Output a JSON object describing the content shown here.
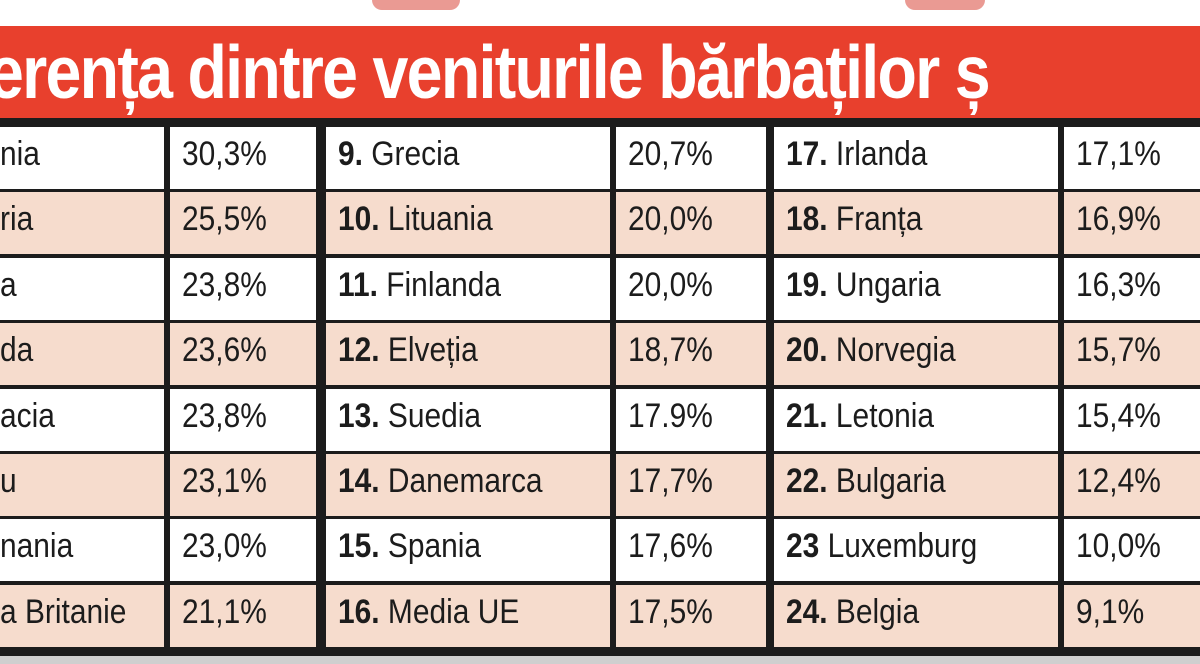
{
  "title": "erența dintre veniturile bărbaților ș",
  "colors": {
    "header": "#e8402d",
    "row_shade": "#f6dccd",
    "grid": "#1c1c1c"
  },
  "groups": [
    {
      "rows": [
        {
          "num": "",
          "name": "nia",
          "value": "30,3%"
        },
        {
          "num": "",
          "name": "ria",
          "value": "25,5%"
        },
        {
          "num": "",
          "name": "a",
          "value": "23,8%"
        },
        {
          "num": "",
          "name": "da",
          "value": "23,6%"
        },
        {
          "num": "",
          "name": "acia",
          "value": "23,8%"
        },
        {
          "num": "",
          "name": "u",
          "value": "23,1%"
        },
        {
          "num": "",
          "name": "nania",
          "value": "23,0%"
        },
        {
          "num": "",
          "name": "a Britanie",
          "value": "21,1%"
        }
      ]
    },
    {
      "rows": [
        {
          "num": "9.",
          "name": "Grecia",
          "value": "20,7%"
        },
        {
          "num": "10.",
          "name": "Lituania",
          "value": "20,0%"
        },
        {
          "num": "11.",
          "name": "Finlanda",
          "value": "20,0%"
        },
        {
          "num": "12.",
          "name": "Elveția",
          "value": "18,7%"
        },
        {
          "num": "13.",
          "name": "Suedia",
          "value": "17.9%"
        },
        {
          "num": "14.",
          "name": "Danemarca",
          "value": "17,7%"
        },
        {
          "num": "15.",
          "name": "Spania",
          "value": "17,6%"
        },
        {
          "num": "16.",
          "name": "Media UE",
          "value": "17,5%"
        }
      ]
    },
    {
      "rows": [
        {
          "num": "17.",
          "name": "Irlanda",
          "value": "17,1%"
        },
        {
          "num": "18.",
          "name": "Franța",
          "value": "16,9%"
        },
        {
          "num": "19.",
          "name": "Ungaria",
          "value": "16,3%"
        },
        {
          "num": "20.",
          "name": "Norvegia",
          "value": "15,7%"
        },
        {
          "num": "21.",
          "name": "Letonia",
          "value": "15,4%"
        },
        {
          "num": "22.",
          "name": "Bulgaria",
          "value": "12,4%"
        },
        {
          "num": "23",
          "name": "Luxemburg",
          "value": "10,0%"
        },
        {
          "num": "24.",
          "name": "Belgia",
          "value": "9,1%"
        }
      ]
    }
  ]
}
